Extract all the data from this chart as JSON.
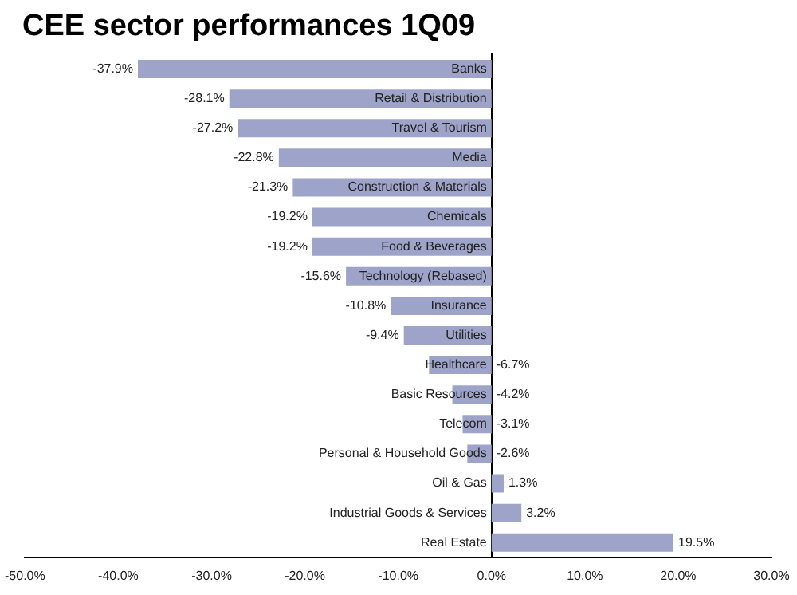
{
  "chart_data": {
    "type": "bar",
    "title": "CEE sector performances 1Q09",
    "orientation": "horizontal",
    "categories": [
      "Banks",
      "Retail & Distribution",
      "Travel & Tourism",
      "Media",
      "Construction & Materials",
      "Chemicals",
      "Food & Beverages",
      "Technology (Rebased)",
      "Insurance",
      "Utilities",
      "Healthcare",
      "Basic Resources",
      "Telecom",
      "Personal & Household Goods",
      "Oil & Gas",
      "Industrial Goods & Services",
      "Real Estate"
    ],
    "values": [
      -37.9,
      -28.1,
      -27.2,
      -22.8,
      -21.3,
      -19.2,
      -19.2,
      -15.6,
      -10.8,
      -9.4,
      -6.7,
      -4.2,
      -3.1,
      -2.6,
      1.3,
      3.2,
      19.5
    ],
    "value_labels": [
      "-37.9%",
      "-28.1%",
      "-27.2%",
      "-22.8%",
      "-21.3%",
      "-19.2%",
      "-19.2%",
      "-15.6%",
      "-10.8%",
      "-9.4%",
      "-6.7%",
      "-4.2%",
      "-3.1%",
      "-2.6%",
      "1.3%",
      "3.2%",
      "19.5%"
    ],
    "color": "#9ea4c9",
    "xlim": [
      -50,
      30
    ],
    "xticks": [
      {
        "value": -50,
        "label": "-50.0%"
      },
      {
        "value": -40,
        "label": "-40.0%"
      },
      {
        "value": -30,
        "label": "-30.0%"
      },
      {
        "value": -20,
        "label": "-20.0%"
      },
      {
        "value": -10,
        "label": "-10.0%"
      },
      {
        "value": 0,
        "label": "0.0%"
      },
      {
        "value": 10,
        "label": "10.0%"
      },
      {
        "value": 20,
        "label": "20.0%"
      },
      {
        "value": 30,
        "label": "30.0%"
      }
    ],
    "grid": false,
    "legend": false
  }
}
